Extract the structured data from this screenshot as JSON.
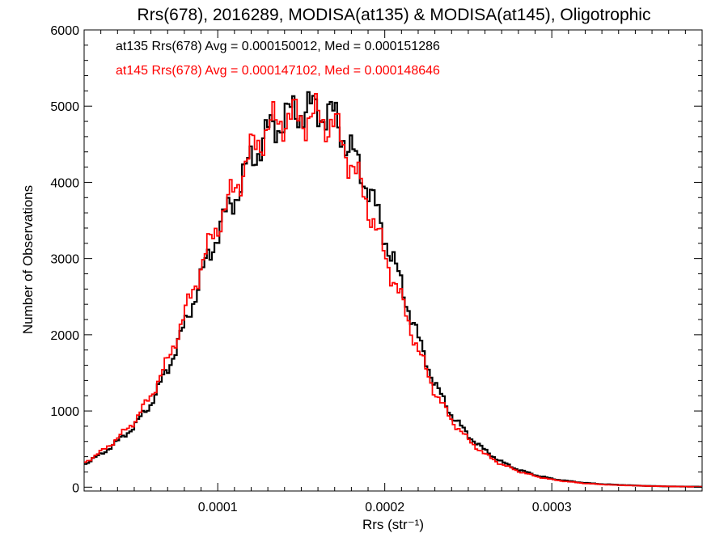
{
  "chart_data": {
    "type": "line",
    "title": "Rrs(678), 2016289, MODISA(at135) & MODISA(at145), Oligotrophic",
    "xlabel": "Rrs (str⁻¹)",
    "ylabel": "Number of Observations",
    "xlim": [
      2e-05,
      0.00039
    ],
    "ylim": [
      -50,
      6000
    ],
    "x_ticks": [
      0.0001,
      0.0002,
      0.0003
    ],
    "x_tick_labels": [
      "0.0001",
      "0.0002",
      "0.0003"
    ],
    "y_ticks": [
      0,
      1000,
      2000,
      3000,
      4000,
      5000,
      6000
    ],
    "y_tick_labels": [
      "0",
      "1000",
      "2000",
      "3000",
      "4000",
      "5000",
      "6000"
    ],
    "grid": false,
    "legend": "top-left",
    "stats": [
      {
        "text": "at135 Rrs(678) Avg = 0.000150012, Med = 0.000151286",
        "color": "#000000"
      },
      {
        "text": "at145 Rrs(678) Avg = 0.000147102, Med = 0.000148646",
        "color": "#ff0000"
      }
    ],
    "series": [
      {
        "name": "at135",
        "color": "#000000",
        "x": [
          2e-05,
          3e-05,
          4e-05,
          5e-05,
          6e-05,
          7e-05,
          8e-05,
          9e-05,
          0.0001,
          0.00011,
          0.00012,
          0.00013,
          0.00014,
          0.00015,
          0.00016,
          0.00017,
          0.00018,
          0.00019,
          0.0002,
          0.00021,
          0.00022,
          0.00023,
          0.00024,
          0.00025,
          0.00026,
          0.00027,
          0.00028,
          0.00029,
          0.0003,
          0.00031,
          0.00032,
          0.00033,
          0.00034,
          0.00035,
          0.00036,
          0.00037,
          0.00038,
          0.00039
        ],
        "y": [
          300,
          430,
          600,
          800,
          1100,
          1550,
          2100,
          2750,
          3350,
          3800,
          4300,
          4650,
          4850,
          4950,
          4950,
          4850,
          4400,
          3950,
          3300,
          2650,
          1950,
          1350,
          950,
          680,
          480,
          330,
          230,
          160,
          110,
          80,
          55,
          40,
          30,
          22,
          15,
          10,
          8,
          6
        ]
      },
      {
        "name": "at145",
        "color": "#ff0000",
        "x": [
          2e-05,
          3e-05,
          4e-05,
          5e-05,
          6e-05,
          7e-05,
          8e-05,
          9e-05,
          0.0001,
          0.00011,
          0.00012,
          0.00013,
          0.00014,
          0.00015,
          0.00016,
          0.00017,
          0.00018,
          0.00019,
          0.0002,
          0.00021,
          0.00022,
          0.00023,
          0.00024,
          0.00025,
          0.00026,
          0.00027,
          0.00028,
          0.00029,
          0.0003,
          0.00031,
          0.00032,
          0.00033,
          0.00034,
          0.00035,
          0.00036,
          0.00037,
          0.00038,
          0.00039
        ],
        "y": [
          320,
          460,
          640,
          860,
          1200,
          1650,
          2250,
          2900,
          3450,
          3900,
          4400,
          4700,
          4850,
          4850,
          4850,
          4750,
          4250,
          3700,
          3050,
          2450,
          1800,
          1250,
          880,
          620,
          430,
          300,
          210,
          145,
          100,
          72,
          50,
          36,
          27,
          20,
          14,
          10,
          7,
          5
        ]
      }
    ]
  }
}
